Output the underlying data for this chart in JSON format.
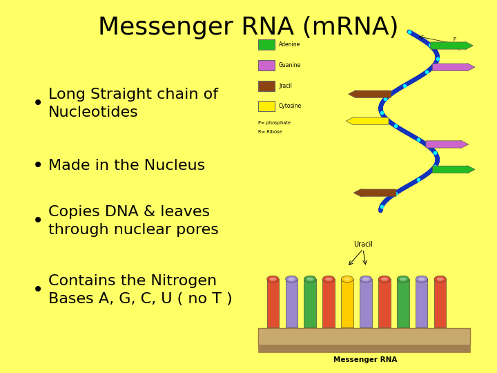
{
  "title": "Messenger RNA (mRNA)",
  "title_fontsize": 26,
  "background_color": "#FFFF66",
  "bullet_points": [
    "Long Straight chain of\nNucleotides",
    "Made in the Nucleus",
    "Copies DNA & leaves\nthrough nuclear pores",
    "Contains the Nitrogen\nBases A, G, C, U ( no T )"
  ],
  "bullet_fontsize": 16,
  "text_color": "#000000",
  "legend_colors": [
    "#22bb22",
    "#cc66cc",
    "#8B4513",
    "#FFEE00"
  ],
  "legend_labels": [
    "Adenine",
    "Guanine",
    "Jracil",
    "Cytosine"
  ],
  "strand_color": "#2244cc",
  "base_colors_strand": [
    "#22bb22",
    "#cc66cc",
    "#8B4513",
    "#FFEE00",
    "#cc66cc",
    "#22bb22",
    "#8B4513"
  ],
  "img2_base_colors": [
    "#e05030",
    "#9988cc",
    "#44aa44",
    "#e05030",
    "#FFCC00",
    "#9988cc",
    "#e05030",
    "#44aa44",
    "#9988cc",
    "#e05030"
  ],
  "img2_uracil_indices": [
    4,
    5
  ],
  "platform_color": "#c8a96e"
}
